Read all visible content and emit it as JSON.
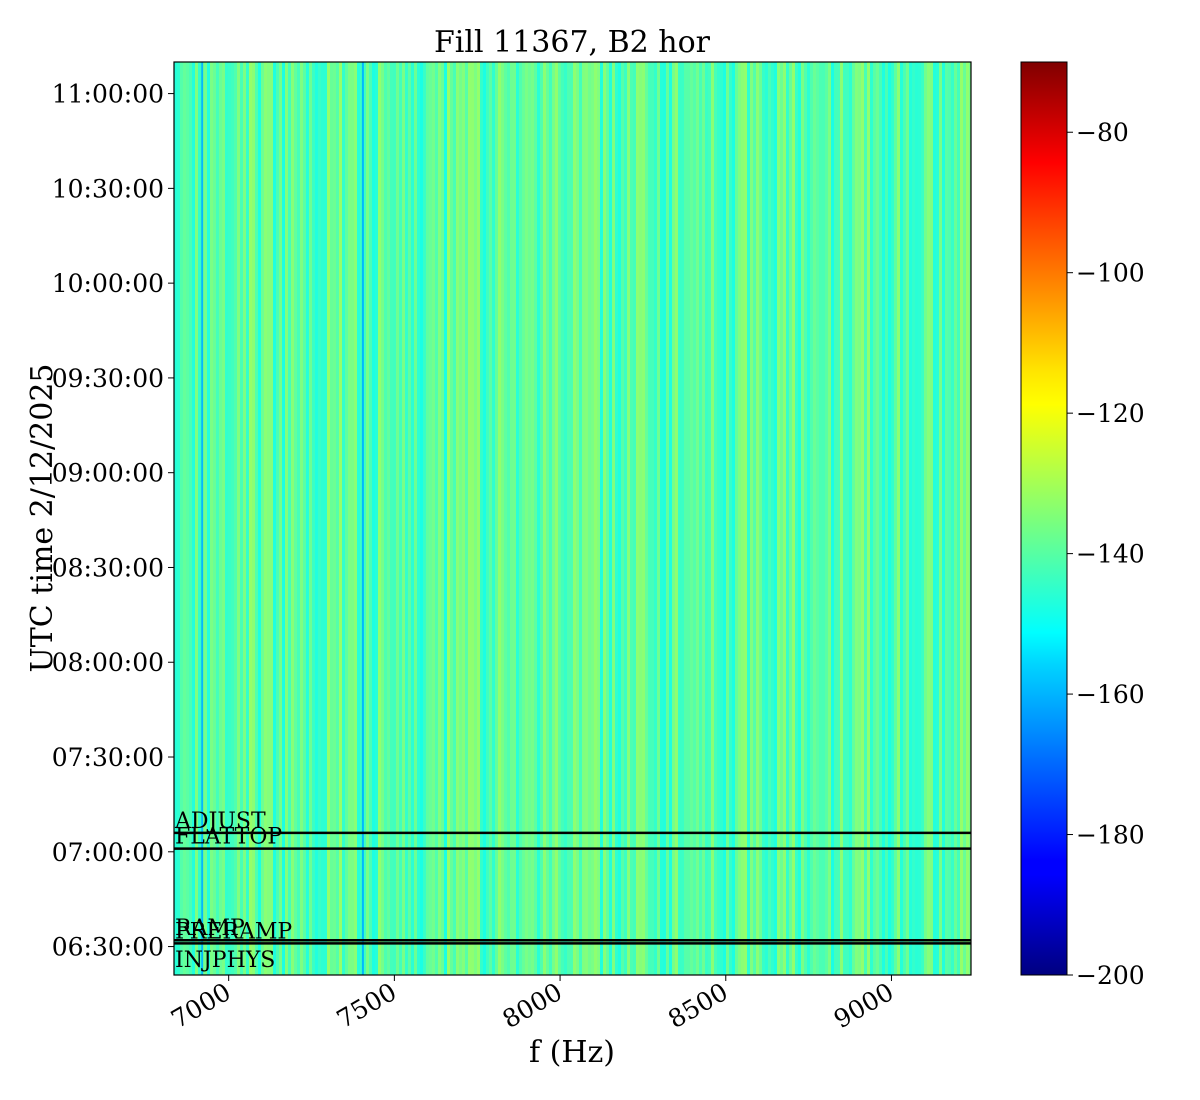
{
  "chart_data": {
    "type": "heatmap",
    "title": "Fill 11367, B2 hor",
    "xlabel": "f (Hz)",
    "ylabel": "UTC time 2/12/2025",
    "xlim": [
      6835,
      9240
    ],
    "x_ticks": [
      7000,
      7500,
      8000,
      8500,
      9000
    ],
    "x_tick_labels": [
      "7000",
      "7500",
      "8000",
      "8500",
      "9000"
    ],
    "ylim": [
      "06:21:00",
      "11:10:00"
    ],
    "y_ticks": [
      "06:30:00",
      "07:00:00",
      "07:30:00",
      "08:00:00",
      "08:30:00",
      "09:00:00",
      "09:30:00",
      "10:00:00",
      "10:30:00",
      "11:00:00"
    ],
    "colormap": "jet",
    "colorbar": {
      "range": [
        -200,
        -70
      ],
      "ticks": [
        -80,
        -100,
        -120,
        -140,
        -160,
        -180,
        -200
      ],
      "tick_labels": [
        "−80",
        "−100",
        "−120",
        "−140",
        "−160",
        "−180",
        "−200"
      ]
    },
    "typical_value_range": [
      -148,
      -132
    ],
    "low_value_lines_hz": [
      6920,
      7405
    ],
    "beam_modes": [
      {
        "name": "ADJUST",
        "time": "07:06:00"
      },
      {
        "name": "FLATTOP",
        "time": "07:01:00"
      },
      {
        "name": "RAMP",
        "time": "06:32:00"
      },
      {
        "name": "PRERAMP",
        "time": "06:31:00"
      },
      {
        "name": "INJPHYS",
        "time": "06:22:00"
      }
    ]
  }
}
